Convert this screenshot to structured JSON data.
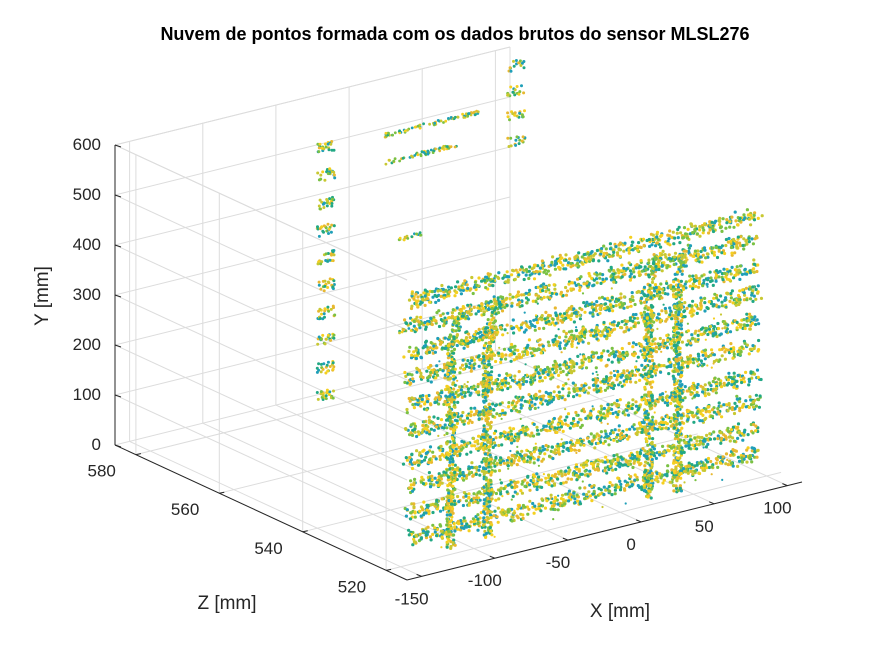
{
  "chart_data": {
    "type": "scatter3d",
    "title": "Nuvem de pontos formada com os dados brutos do sensor MLSL276",
    "xlabel": "X  [mm]",
    "ylabel": "Y  [mm]",
    "zlabel": "Z  [mm]",
    "xlim": [
      -160,
      110
    ],
    "ylim": [
      0,
      600
    ],
    "zlim": [
      515,
      585
    ],
    "xticks": [
      -150,
      -100,
      -50,
      0,
      50,
      100
    ],
    "yticks": [
      0,
      100,
      200,
      300,
      400,
      500,
      600
    ],
    "zticks": [
      520,
      540,
      560,
      580
    ],
    "grid": true,
    "colormap": [
      "#1f9fb8",
      "#22a884",
      "#7ac143",
      "#c8c832",
      "#e8b830",
      "#f5d020"
    ],
    "structures": {
      "rails": {
        "x_range": [
          -140,
          100
        ],
        "z": 522,
        "y_values": [
          40,
          90,
          145,
          195,
          255,
          305,
          360,
          410,
          465,
          515
        ]
      },
      "posts": [
        {
          "x": -110,
          "z": 522,
          "y_range": [
            0,
            470
          ]
        },
        {
          "x": -85,
          "z": 522,
          "y_range": [
            0,
            470
          ]
        },
        {
          "x": 25,
          "z": 522,
          "y_range": [
            0,
            490
          ]
        },
        {
          "x": 45,
          "z": 522,
          "y_range": [
            0,
            490
          ]
        }
      ],
      "back_clusters_left": {
        "x": -30,
        "z": 580,
        "y_values": [
          25,
          80,
          135,
          190,
          245,
          300,
          355,
          410,
          465,
          520
        ]
      },
      "back_clusters_right": {
        "x": 100,
        "z": 580,
        "y_values": [
          440,
          490,
          540,
          590
        ]
      },
      "back_segments": [
        {
          "x_range": [
            10,
            75
          ],
          "z": 580,
          "y": 515
        },
        {
          "x_range": [
            10,
            60
          ],
          "z": 580,
          "y": 460
        },
        {
          "x_range": [
            20,
            35
          ],
          "z": 580,
          "y": 300
        },
        {
          "x_range": [
            20,
            30
          ],
          "z": 580,
          "y": 115
        }
      ]
    }
  }
}
